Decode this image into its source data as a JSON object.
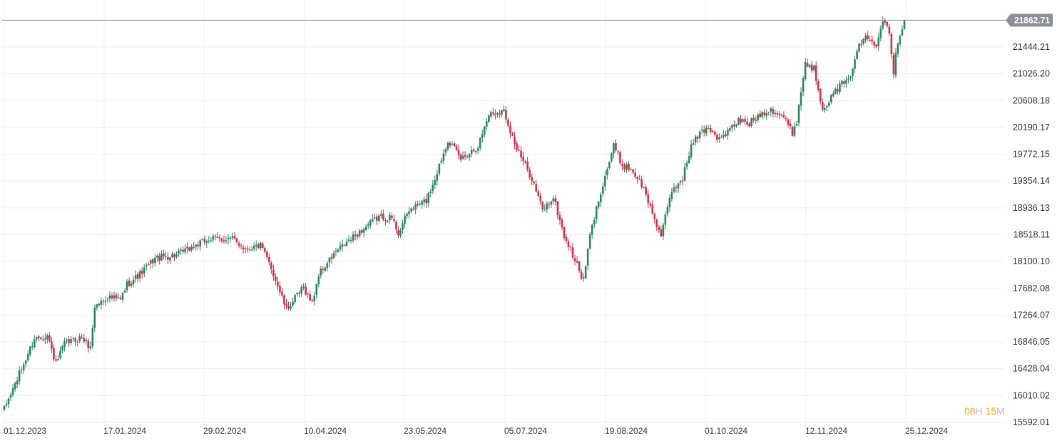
{
  "chart_data": {
    "type": "candlestick",
    "title": "",
    "xlabel": "",
    "ylabel": "",
    "ylim": [
      15592.01,
      22050
    ],
    "y_ticks": [
      "21444.21",
      "21026.20",
      "20608.18",
      "20190.17",
      "19772.15",
      "19354.14",
      "18936.13",
      "18518.11",
      "18100.10",
      "17682.08",
      "17264.07",
      "16846.05",
      "16428.04",
      "16010.02",
      "15592.01"
    ],
    "x_ticks": [
      "01.12.2023",
      "17.01.2024",
      "29.02.2024",
      "10.04.2024",
      "23.05.2024",
      "05.07.2024",
      "19.08.2024",
      "01.10.2024",
      "12.11.2024",
      "25.12.2024"
    ],
    "last_price": "21862.71",
    "grid": true,
    "up_color": "#26875f",
    "down_color": "#d12f45",
    "anchor_closes": [
      [
        0,
        15800
      ],
      [
        10,
        16580
      ],
      [
        14,
        16900
      ],
      [
        20,
        16950
      ],
      [
        24,
        16500
      ],
      [
        28,
        16820
      ],
      [
        36,
        16920
      ],
      [
        40,
        16750
      ],
      [
        42,
        17400
      ],
      [
        48,
        17550
      ],
      [
        54,
        17500
      ],
      [
        57,
        17750
      ],
      [
        63,
        17900
      ],
      [
        70,
        18150
      ],
      [
        80,
        18200
      ],
      [
        95,
        18450
      ],
      [
        106,
        18450
      ],
      [
        112,
        18300
      ],
      [
        119,
        18350
      ],
      [
        124,
        18000
      ],
      [
        131,
        17350
      ],
      [
        139,
        17700
      ],
      [
        143,
        17450
      ],
      [
        146,
        17900
      ],
      [
        154,
        18250
      ],
      [
        161,
        18450
      ],
      [
        174,
        18800
      ],
      [
        180,
        18780
      ],
      [
        183,
        18550
      ],
      [
        188,
        18900
      ],
      [
        196,
        19050
      ],
      [
        200,
        19400
      ],
      [
        206,
        20000
      ],
      [
        212,
        19700
      ],
      [
        220,
        19900
      ],
      [
        225,
        20400
      ],
      [
        232,
        20450
      ],
      [
        238,
        19850
      ],
      [
        245,
        19400
      ],
      [
        250,
        18900
      ],
      [
        255,
        19100
      ],
      [
        260,
        18500
      ],
      [
        264,
        18200
      ],
      [
        269,
        17800
      ],
      [
        272,
        18500
      ],
      [
        277,
        19200
      ],
      [
        283,
        19900
      ],
      [
        287,
        19600
      ],
      [
        291,
        19550
      ],
      [
        296,
        19300
      ],
      [
        300,
        18950
      ],
      [
        305,
        18500
      ],
      [
        310,
        19200
      ],
      [
        315,
        19400
      ],
      [
        319,
        19900
      ],
      [
        323,
        20100
      ],
      [
        327,
        20200
      ],
      [
        332,
        20000
      ],
      [
        337,
        20150
      ],
      [
        341,
        20300
      ],
      [
        346,
        20250
      ],
      [
        351,
        20400
      ],
      [
        356,
        20480
      ],
      [
        362,
        20350
      ],
      [
        366,
        20100
      ],
      [
        368,
        20300
      ],
      [
        372,
        21200
      ],
      [
        376,
        21100
      ],
      [
        380,
        20500
      ],
      [
        384,
        20650
      ],
      [
        388,
        20850
      ],
      [
        392,
        20900
      ],
      [
        396,
        21400
      ],
      [
        400,
        21600
      ],
      [
        405,
        21500
      ],
      [
        408,
        21900
      ],
      [
        411,
        21700
      ],
      [
        413,
        21050
      ],
      [
        415,
        21550
      ],
      [
        418,
        21860
      ]
    ],
    "bars": 419
  },
  "countdown": {
    "hours": "08",
    "hours_unit": "H",
    "minutes": "15",
    "minutes_unit": "M"
  }
}
